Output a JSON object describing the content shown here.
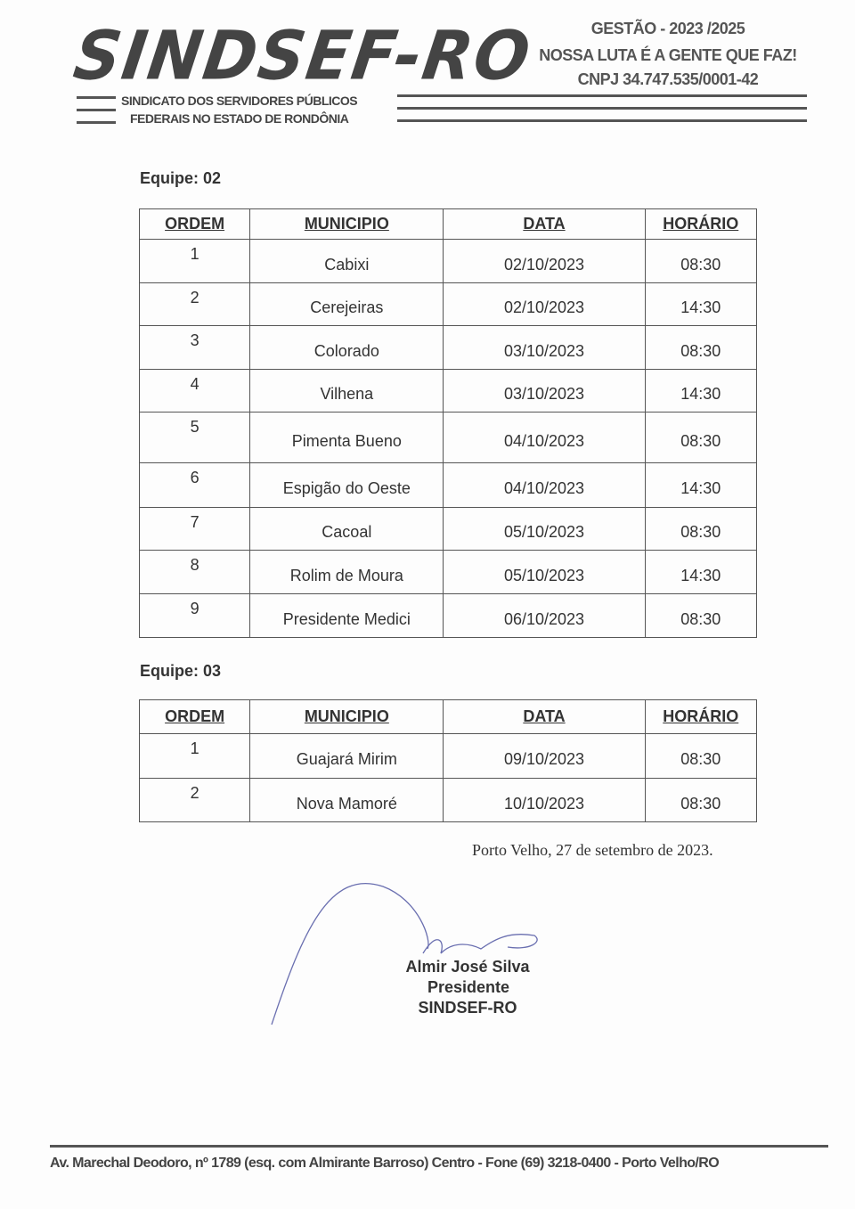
{
  "letterhead": {
    "logo_text": "SINDSEF-RO",
    "org_line1": "SINDICATO DOS SERVIDORES PÚBLICOS",
    "org_line2": "FEDERAIS NO ESTADO DE RONDÔNIA",
    "gestao": "GESTÃO - 2023 /2025",
    "slogan": "NOSSA LUTA É A GENTE QUE FAZ!",
    "cnpj": "CNPJ 34.747.535/0001-42"
  },
  "columns": [
    "ORDEM",
    "MUNICIPIO",
    "DATA",
    "HORÁRIO"
  ],
  "teams": [
    {
      "label": "Equipe: 02",
      "rows": [
        [
          "1",
          "Cabixi",
          "02/10/2023",
          "08:30"
        ],
        [
          "2",
          "Cerejeiras",
          "02/10/2023",
          "14:30"
        ],
        [
          "3",
          "Colorado",
          "03/10/2023",
          "08:30"
        ],
        [
          "4",
          "Vilhena",
          "03/10/2023",
          "14:30"
        ],
        [
          "5",
          "Pimenta Bueno",
          "04/10/2023",
          "08:30"
        ],
        [
          "6",
          "Espigão do Oeste",
          "04/10/2023",
          "14:30"
        ],
        [
          "7",
          "Cacoal",
          "05/10/2023",
          "08:30"
        ],
        [
          "8",
          "Rolim de Moura",
          "05/10/2023",
          "14:30"
        ],
        [
          "9",
          "Presidente  Medici",
          "06/10/2023",
          "08:30"
        ]
      ]
    },
    {
      "label": "Equipe: 03",
      "rows": [
        [
          "1",
          "Guajará Mirim",
          "09/10/2023",
          "08:30"
        ],
        [
          "2",
          "Nova Mamoré",
          "10/10/2023",
          "08:30"
        ]
      ]
    }
  ],
  "place_date": "Porto Velho, 27 de setembro de 2023.",
  "signature": {
    "name": "Almir José Silva",
    "role": "Presidente",
    "org": "SINDSEF-RO"
  },
  "footer": "Av. Marechal Deodoro, nº 1789 (esq. com Almirante Barroso) Centro - Fone (69) 3218-0400 - Porto Velho/RO"
}
